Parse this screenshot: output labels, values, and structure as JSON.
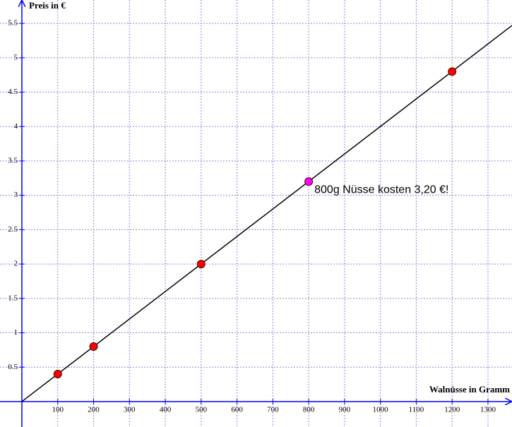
{
  "chart_data": {
    "type": "scatter",
    "x_label": "Walnüsse in Gramm",
    "y_label": "Preis in €",
    "xlim": [
      -61,
      1367
    ],
    "ylim": [
      -0.37,
      5.84
    ],
    "xticks": [
      100,
      200,
      300,
      400,
      500,
      600,
      700,
      800,
      900,
      1000,
      1100,
      1200,
      1300
    ],
    "yticks": [
      0.5,
      1,
      1.5,
      2,
      2.5,
      3,
      3.5,
      4,
      4.5,
      5,
      5.5
    ],
    "grid": true,
    "line": {
      "color": "#000000",
      "x": [
        0,
        1367
      ],
      "values": [
        0,
        5.47
      ]
    },
    "series": [
      {
        "color": "#ff0000",
        "x": [
          100,
          200,
          500,
          1200
        ],
        "values": [
          0.4,
          0.8,
          2,
          4.8
        ]
      },
      {
        "color": "#ff00ff",
        "x": [
          800
        ],
        "values": [
          3.2
        ]
      }
    ],
    "annotation": "800g Nüsse kosten 3,20 €!"
  }
}
